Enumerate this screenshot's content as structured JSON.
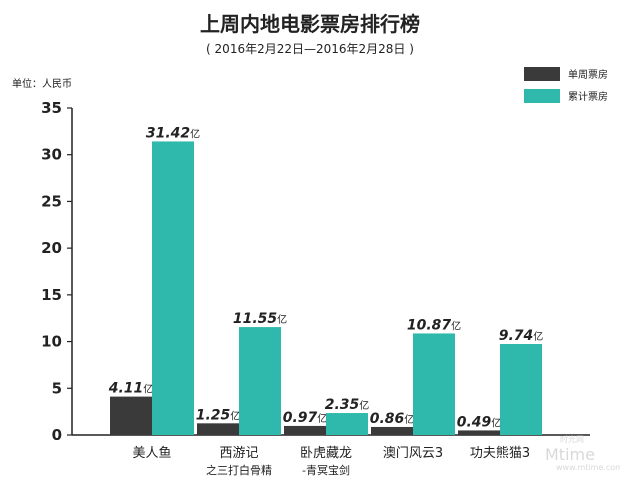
{
  "chart_data": {
    "type": "bar",
    "title": "上周内地电影票房排行榜",
    "subtitle": "( 2016年2月22日—2016年2月28日 )",
    "unit_label": "单位：人民币",
    "value_suffix": "亿",
    "categories": [
      {
        "line1": "美人鱼",
        "line2": ""
      },
      {
        "line1": "西游记",
        "line2": "之三打白骨精"
      },
      {
        "line1": "卧虎藏龙",
        "line2": "-青冥宝剑"
      },
      {
        "line1": "澳门风云3",
        "line2": ""
      },
      {
        "line1": "功夫熊猫3",
        "line2": ""
      }
    ],
    "series": [
      {
        "name": "单周票房",
        "color": "#3a3a3a",
        "values": [
          4.11,
          1.25,
          0.97,
          0.86,
          0.49
        ],
        "labels": [
          "4.11",
          "1.25",
          "0.97",
          "0.86",
          "0.49"
        ]
      },
      {
        "name": "累计票房",
        "color": "#2fb8ac",
        "values": [
          31.42,
          11.55,
          2.35,
          10.87,
          9.74
        ],
        "labels": [
          "31.42",
          "11.55",
          "2.35",
          "10.87",
          "9.74"
        ]
      }
    ],
    "ylim": [
      0,
      35
    ],
    "yticks": [
      0,
      5,
      10,
      15,
      20,
      25,
      30,
      35
    ],
    "legend_position": "top-right",
    "grid": false
  },
  "watermark": {
    "brand": "Mtime",
    "site_cn": "时光网",
    "site_url": "www.mtime.com"
  }
}
